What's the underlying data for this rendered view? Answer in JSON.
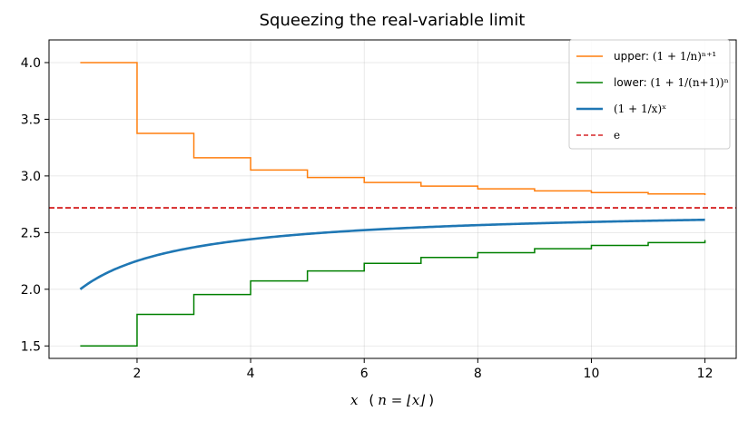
{
  "chart_data": {
    "type": "line",
    "title": "Squeezing the real-variable limit",
    "xlabel": {
      "math": "x",
      "paren": "(",
      "n_eq": "n = ⌊x⌋",
      "close": ")"
    },
    "ylabel": "",
    "xlim": [
      0.45,
      12.55
    ],
    "ylim": [
      1.39,
      4.2
    ],
    "xticks": [
      2,
      4,
      6,
      8,
      10,
      12
    ],
    "yticks": [
      1.5,
      2.0,
      2.5,
      3.0,
      3.5,
      4.0
    ],
    "ytick_labels": [
      "1.5",
      "2.0",
      "2.5",
      "3.0",
      "3.5",
      "4.0"
    ],
    "grid": true,
    "legend_position": "top-right",
    "series": [
      {
        "name": "upper: (1+1/n)^(n+1)",
        "label_text": "upper: ",
        "label_math": "(1 + 1/n)ⁿ⁺¹",
        "kind": "upper-step",
        "color": "#ff7f0e",
        "x_range": [
          1,
          12
        ]
      },
      {
        "name": "lower: (1+1/(n+1))^n",
        "label_text": "lower: ",
        "label_math": "(1 + 1/(n+1))ⁿ",
        "kind": "lower-step",
        "color": "#008000",
        "x_range": [
          1,
          12
        ]
      },
      {
        "name": "(1+1/x)^x",
        "label_text": "",
        "label_math": "(1 + 1/x)ˣ",
        "kind": "curve",
        "color": "#1f77b4",
        "x_range": [
          1,
          12
        ]
      },
      {
        "name": "e",
        "label_text": "",
        "label_math": "e",
        "kind": "hline",
        "value": 2.718281828,
        "color": "#d62728"
      }
    ]
  }
}
